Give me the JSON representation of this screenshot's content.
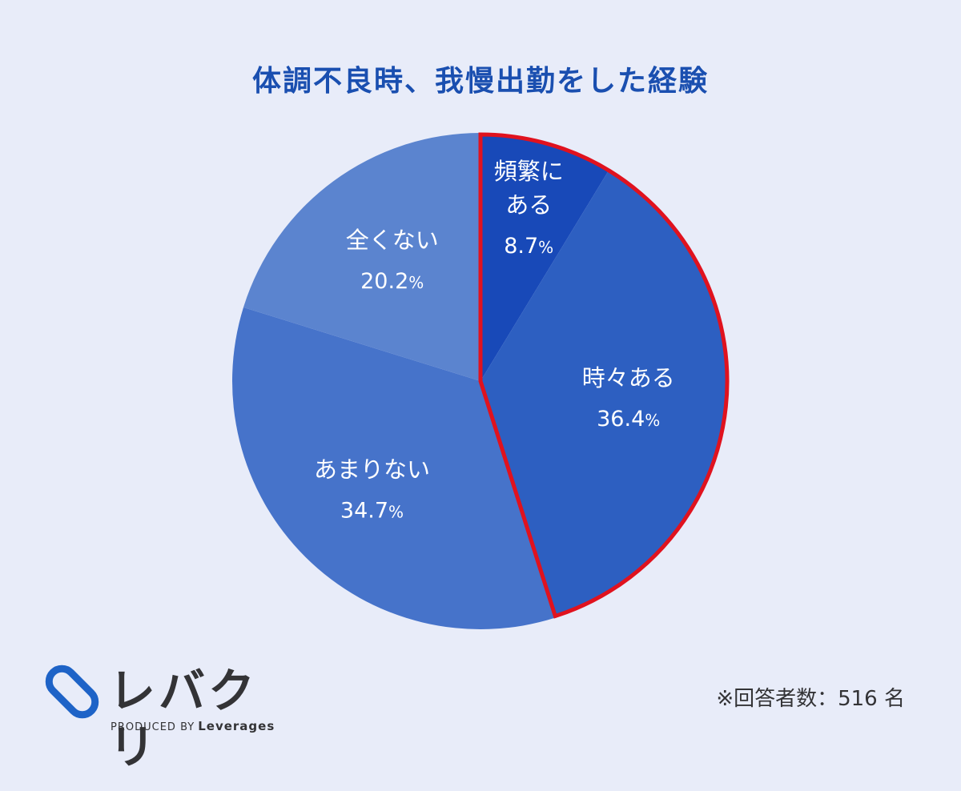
{
  "colors": {
    "background": "#e8ecf9",
    "title": "#1a4fb0",
    "highlight_border": "#e0121e",
    "text_dark": "#333336",
    "logo_blue": "#1e63c7"
  },
  "chart_data": {
    "type": "pie",
    "title": "体調不良時、我慢出勤をした経験",
    "start_angle_deg": 0,
    "direction": "clockwise",
    "slices": [
      {
        "label": "頻繁にある",
        "label_lines": [
          "頻繁に",
          "ある"
        ],
        "value": 8.7,
        "value_text": "8.7",
        "unit": "%",
        "color": "#1849b8"
      },
      {
        "label": "時々ある",
        "label_lines": [
          "時々ある"
        ],
        "value": 36.4,
        "value_text": "36.4",
        "unit": "%",
        "color": "#2d5fc1"
      },
      {
        "label": "あまりない",
        "label_lines": [
          "あまりない"
        ],
        "value": 34.7,
        "value_text": "34.7",
        "unit": "%",
        "color": "#4673ca"
      },
      {
        "label": "全くない",
        "label_lines": [
          "全くない"
        ],
        "value": 20.2,
        "value_text": "20.2",
        "unit": "%",
        "color": "#5b84cf"
      }
    ],
    "highlight": {
      "slices": [
        "頻繁にある",
        "時々ある"
      ],
      "color": "#e0121e"
    }
  },
  "logo": {
    "name": "レバクリ",
    "produced_by": "PRODUCED BY",
    "brand": "Leverages"
  },
  "footnote": "※回答者数：516 名"
}
